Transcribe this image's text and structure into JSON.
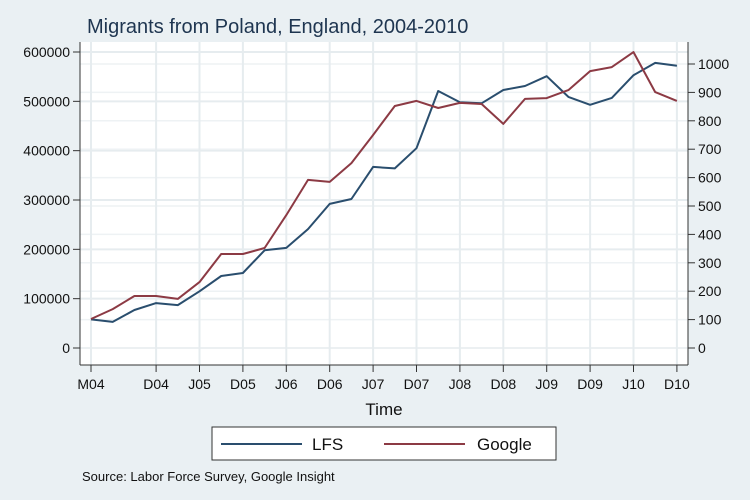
{
  "chart_data": {
    "type": "line",
    "title": "Migrants from Poland, England, 2004-2010",
    "xlabel": "Time",
    "ylabel_left": "",
    "ylabel_right": "",
    "source": "Source:  Labor Force Survey, Google Insight",
    "x_tick_labels": [
      "M04",
      "D04",
      "J05",
      "D05",
      "J06",
      "D06",
      "J07",
      "D07",
      "J08",
      "D08",
      "J09",
      "D09",
      "J10",
      "D10"
    ],
    "x_tick_index": [
      0,
      3,
      5,
      7,
      9,
      11,
      13,
      15,
      17,
      19,
      21,
      23,
      25,
      27
    ],
    "n_points": 28,
    "y_left": {
      "min": 0,
      "max": 600000,
      "ticks": [
        0,
        100000,
        200000,
        300000,
        400000,
        500000,
        600000
      ]
    },
    "y_right": {
      "min": 0,
      "max": 1000,
      "ticks": [
        0,
        100,
        200,
        300,
        400,
        500,
        600,
        700,
        800,
        900,
        1000
      ]
    },
    "grid": true,
    "legend_position": "bottom",
    "series": [
      {
        "name": "LFS",
        "axis": "left",
        "color": "#2a4e6e",
        "values": [
          58000,
          53000,
          77000,
          91000,
          87000,
          115000,
          146000,
          152000,
          198000,
          203000,
          241000,
          292000,
          302000,
          367000,
          364000,
          405000,
          521000,
          498000,
          496000,
          523000,
          531000,
          551000,
          509000,
          493000,
          507000,
          553000,
          578000,
          572000
        ]
      },
      {
        "name": "Google",
        "axis": "right",
        "color": "#8c3a44",
        "values": [
          102,
          137,
          183,
          183,
          173,
          232,
          331,
          331,
          352,
          468,
          592,
          585,
          651,
          750,
          852,
          870,
          845,
          863,
          859,
          789,
          877,
          880,
          908,
          975,
          989,
          1042,
          901,
          870
        ]
      }
    ]
  }
}
